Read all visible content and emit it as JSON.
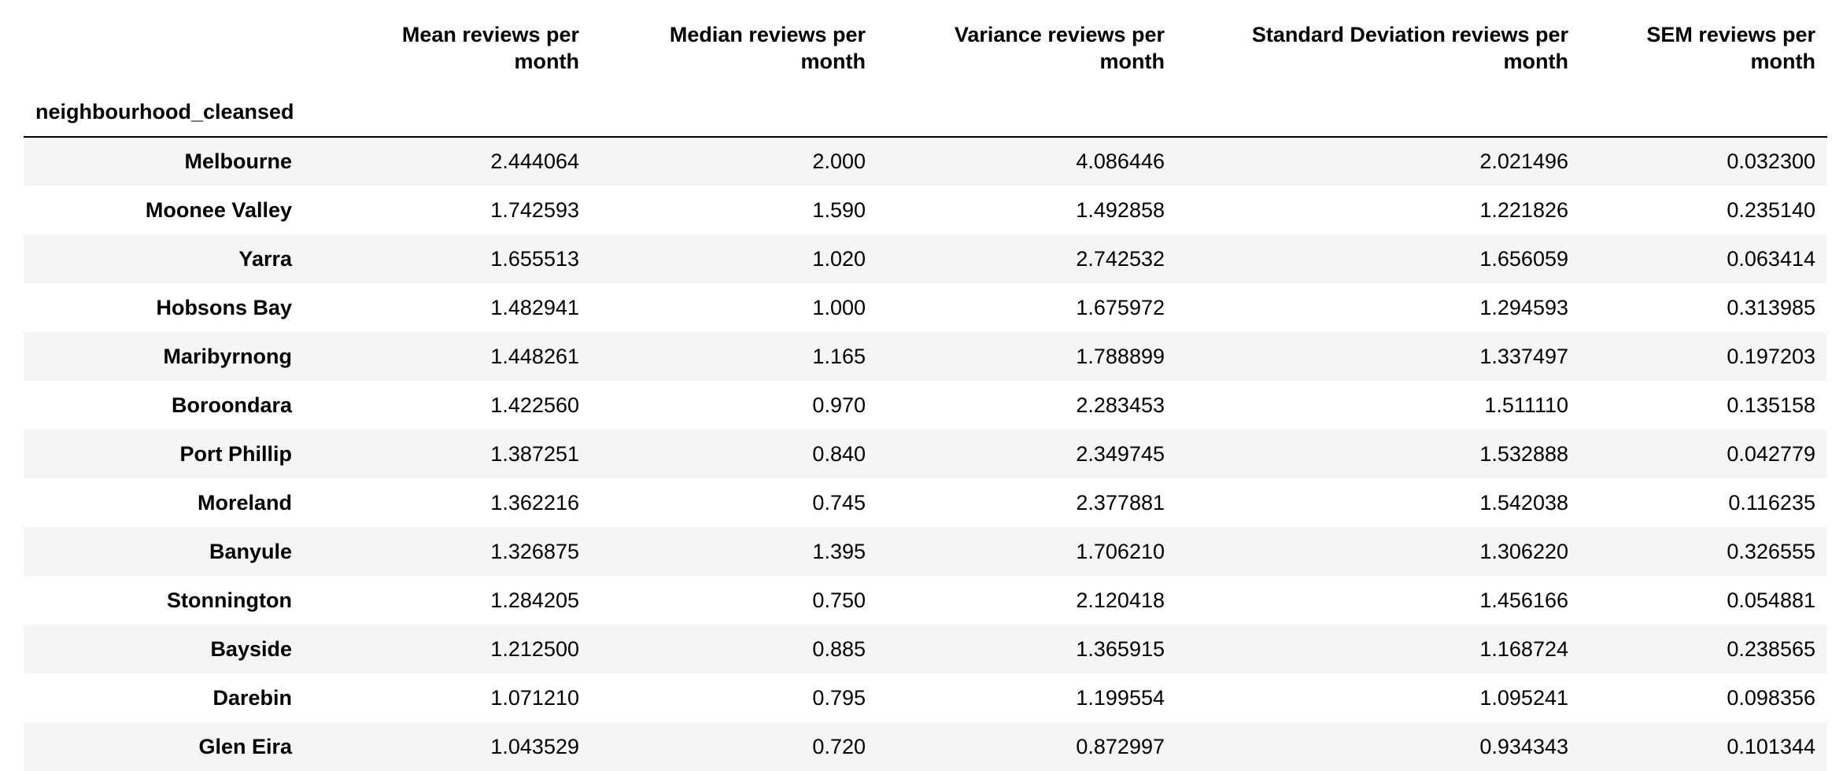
{
  "table": {
    "index_name": "neighbourhood_cleansed",
    "columns": [
      [
        "Mean reviews per",
        "month"
      ],
      [
        "Median reviews per",
        "month"
      ],
      [
        "Variance reviews per",
        "month"
      ],
      [
        "Standard Deviation reviews per",
        "month"
      ],
      [
        "SEM reviews per",
        "month"
      ]
    ],
    "rows": [
      {
        "name": "Melbourne",
        "values": [
          "2.444064",
          "2.000",
          "4.086446",
          "2.021496",
          "0.032300"
        ]
      },
      {
        "name": "Moonee Valley",
        "values": [
          "1.742593",
          "1.590",
          "1.492858",
          "1.221826",
          "0.235140"
        ]
      },
      {
        "name": "Yarra",
        "values": [
          "1.655513",
          "1.020",
          "2.742532",
          "1.656059",
          "0.063414"
        ]
      },
      {
        "name": "Hobsons Bay",
        "values": [
          "1.482941",
          "1.000",
          "1.675972",
          "1.294593",
          "0.313985"
        ]
      },
      {
        "name": "Maribyrnong",
        "values": [
          "1.448261",
          "1.165",
          "1.788899",
          "1.337497",
          "0.197203"
        ]
      },
      {
        "name": "Boroondara",
        "values": [
          "1.422560",
          "0.970",
          "2.283453",
          "1.511110",
          "0.135158"
        ]
      },
      {
        "name": "Port Phillip",
        "values": [
          "1.387251",
          "0.840",
          "2.349745",
          "1.532888",
          "0.042779"
        ]
      },
      {
        "name": "Moreland",
        "values": [
          "1.362216",
          "0.745",
          "2.377881",
          "1.542038",
          "0.116235"
        ]
      },
      {
        "name": "Banyule",
        "values": [
          "1.326875",
          "1.395",
          "1.706210",
          "1.306220",
          "0.326555"
        ]
      },
      {
        "name": "Stonnington",
        "values": [
          "1.284205",
          "0.750",
          "2.120418",
          "1.456166",
          "0.054881"
        ]
      },
      {
        "name": "Bayside",
        "values": [
          "1.212500",
          "0.885",
          "1.365915",
          "1.168724",
          "0.238565"
        ]
      },
      {
        "name": "Darebin",
        "values": [
          "1.071210",
          "0.795",
          "1.199554",
          "1.095241",
          "0.098356"
        ]
      },
      {
        "name": "Glen Eira",
        "values": [
          "1.043529",
          "0.720",
          "0.872997",
          "0.934343",
          "0.101344"
        ]
      }
    ]
  },
  "colors": {
    "stripe": "#f5f5f5",
    "background": "#ffffff",
    "text": "#000000",
    "header_rule": "#000000"
  }
}
